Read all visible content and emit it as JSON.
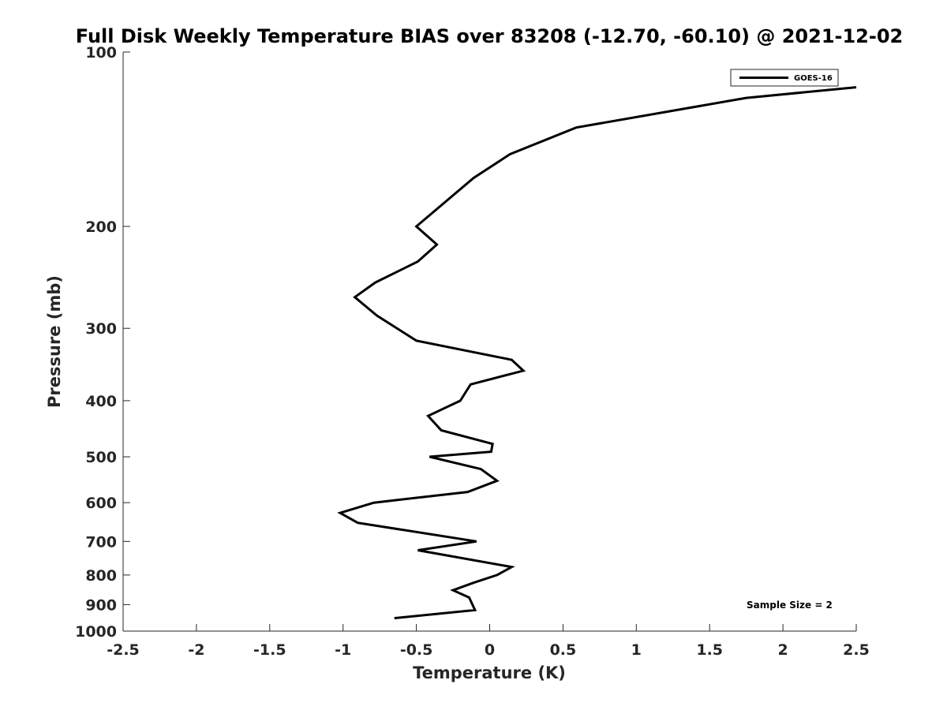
{
  "chart_data": {
    "type": "line",
    "title": "Full Disk Weekly Temperature BIAS over 83208 (-12.70, -60.10) @ 2021-12-02",
    "xlabel": "Temperature (K)",
    "ylabel": "Pressure (mb)",
    "xlim": [
      -2.5,
      2.5
    ],
    "ylim": [
      100,
      1000
    ],
    "y_scale": "log",
    "y_reversed": true,
    "x_ticks": [
      -2.5,
      -2,
      -1.5,
      -1,
      -0.5,
      0,
      0.5,
      1,
      1.5,
      2,
      2.5
    ],
    "x_tick_labels": [
      "-2.5",
      "-2",
      "-1.5",
      "-1",
      "-0.5",
      "0",
      "0.5",
      "1",
      "1.5",
      "2",
      "2.5"
    ],
    "y_ticks": [
      100,
      200,
      300,
      400,
      500,
      600,
      700,
      800,
      900,
      1000
    ],
    "y_tick_labels": [
      "100",
      "200",
      "300",
      "400",
      "500",
      "600",
      "700",
      "800",
      "900",
      "1000"
    ],
    "grid": false,
    "legend_position": "top-right",
    "series": [
      {
        "name": "GOES-16",
        "color": "#000000",
        "points": [
          {
            "x": 2.5,
            "y": 115
          },
          {
            "x": 1.75,
            "y": 120
          },
          {
            "x": 0.59,
            "y": 135
          },
          {
            "x": 0.14,
            "y": 150
          },
          {
            "x": -0.11,
            "y": 165
          },
          {
            "x": -0.5,
            "y": 200
          },
          {
            "x": -0.36,
            "y": 215
          },
          {
            "x": -0.49,
            "y": 230
          },
          {
            "x": -0.78,
            "y": 250
          },
          {
            "x": -0.92,
            "y": 265
          },
          {
            "x": -0.77,
            "y": 285
          },
          {
            "x": -0.5,
            "y": 315
          },
          {
            "x": 0.15,
            "y": 340
          },
          {
            "x": 0.23,
            "y": 355
          },
          {
            "x": -0.13,
            "y": 375
          },
          {
            "x": -0.2,
            "y": 400
          },
          {
            "x": -0.42,
            "y": 425
          },
          {
            "x": -0.33,
            "y": 450
          },
          {
            "x": 0.02,
            "y": 475
          },
          {
            "x": 0.01,
            "y": 490
          },
          {
            "x": -0.41,
            "y": 500
          },
          {
            "x": -0.06,
            "y": 525
          },
          {
            "x": 0.05,
            "y": 550
          },
          {
            "x": -0.15,
            "y": 575
          },
          {
            "x": -0.79,
            "y": 600
          },
          {
            "x": -1.02,
            "y": 625
          },
          {
            "x": -0.9,
            "y": 650
          },
          {
            "x": -0.09,
            "y": 700
          },
          {
            "x": -0.49,
            "y": 725
          },
          {
            "x": 0.15,
            "y": 775
          },
          {
            "x": 0.05,
            "y": 800
          },
          {
            "x": -0.11,
            "y": 825
          },
          {
            "x": -0.25,
            "y": 850
          },
          {
            "x": -0.14,
            "y": 875
          },
          {
            "x": -0.1,
            "y": 920
          },
          {
            "x": -0.65,
            "y": 950
          }
        ]
      }
    ],
    "annotations": [
      {
        "text": "Sample Size = 2"
      }
    ]
  }
}
